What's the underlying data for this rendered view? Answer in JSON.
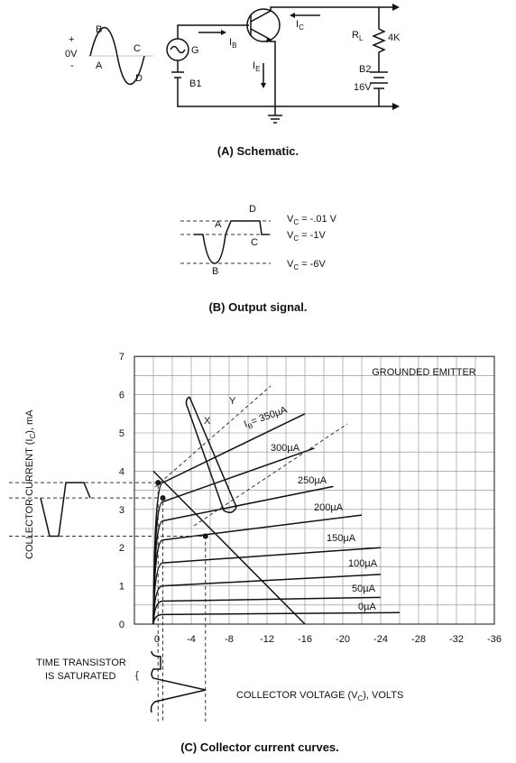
{
  "schematic": {
    "signal": {
      "plus": "+",
      "zero": "0V",
      "minus": "-",
      "b": "B",
      "c": "C",
      "a": "A",
      "d": "D"
    },
    "generator": "G",
    "battery1": "B1",
    "ib": {
      "t": "I",
      "s": "B"
    },
    "ic": {
      "t": "I",
      "s": "C"
    },
    "ie": {
      "t": "I",
      "s": "E"
    },
    "rl": {
      "t": "R",
      "s": "L"
    },
    "rl_value": "4K",
    "battery2": "B2",
    "battery2_value": "16V",
    "caption": "(A) Schematic."
  },
  "output": {
    "a": "A",
    "b": "B",
    "c": "C",
    "d": "D",
    "levels": [
      {
        "t": "V",
        "s": "C",
        "r": " = -.01 V"
      },
      {
        "t": "V",
        "s": "C",
        "r": " = -1V"
      },
      {
        "t": "V",
        "s": "C",
        "r": " = -6V"
      }
    ],
    "caption": "(B) Output signal."
  },
  "curves": {
    "title": "GROUNDED EMITTER",
    "y_label": {
      "t": "COLLECTOR CURRENT (I",
      "s": "C",
      "r": "), mA"
    },
    "x_label": {
      "t": "COLLECTOR VOLTAGE (V",
      "s": "C",
      "r": "), VOLTS"
    },
    "yticks": [
      "0",
      "1",
      "2",
      "3",
      "4",
      "5",
      "6",
      "7"
    ],
    "xticks": [
      "0",
      "-4",
      "-8",
      "-12",
      "-16",
      "-20",
      "-24",
      "-28",
      "-32",
      "-36"
    ],
    "ib_top": {
      "t": "I",
      "s": "B",
      "r": "= 350µA"
    },
    "base_currents": [
      "300µA",
      "250µA",
      "200µA",
      "150µA",
      "100µA",
      "50µA",
      "0µA"
    ],
    "x": "X",
    "y": "Y",
    "saturated": [
      "TIME TRANSISTOR",
      "IS SATURATED"
    ],
    "caption": "(C) Collector current curves."
  }
}
